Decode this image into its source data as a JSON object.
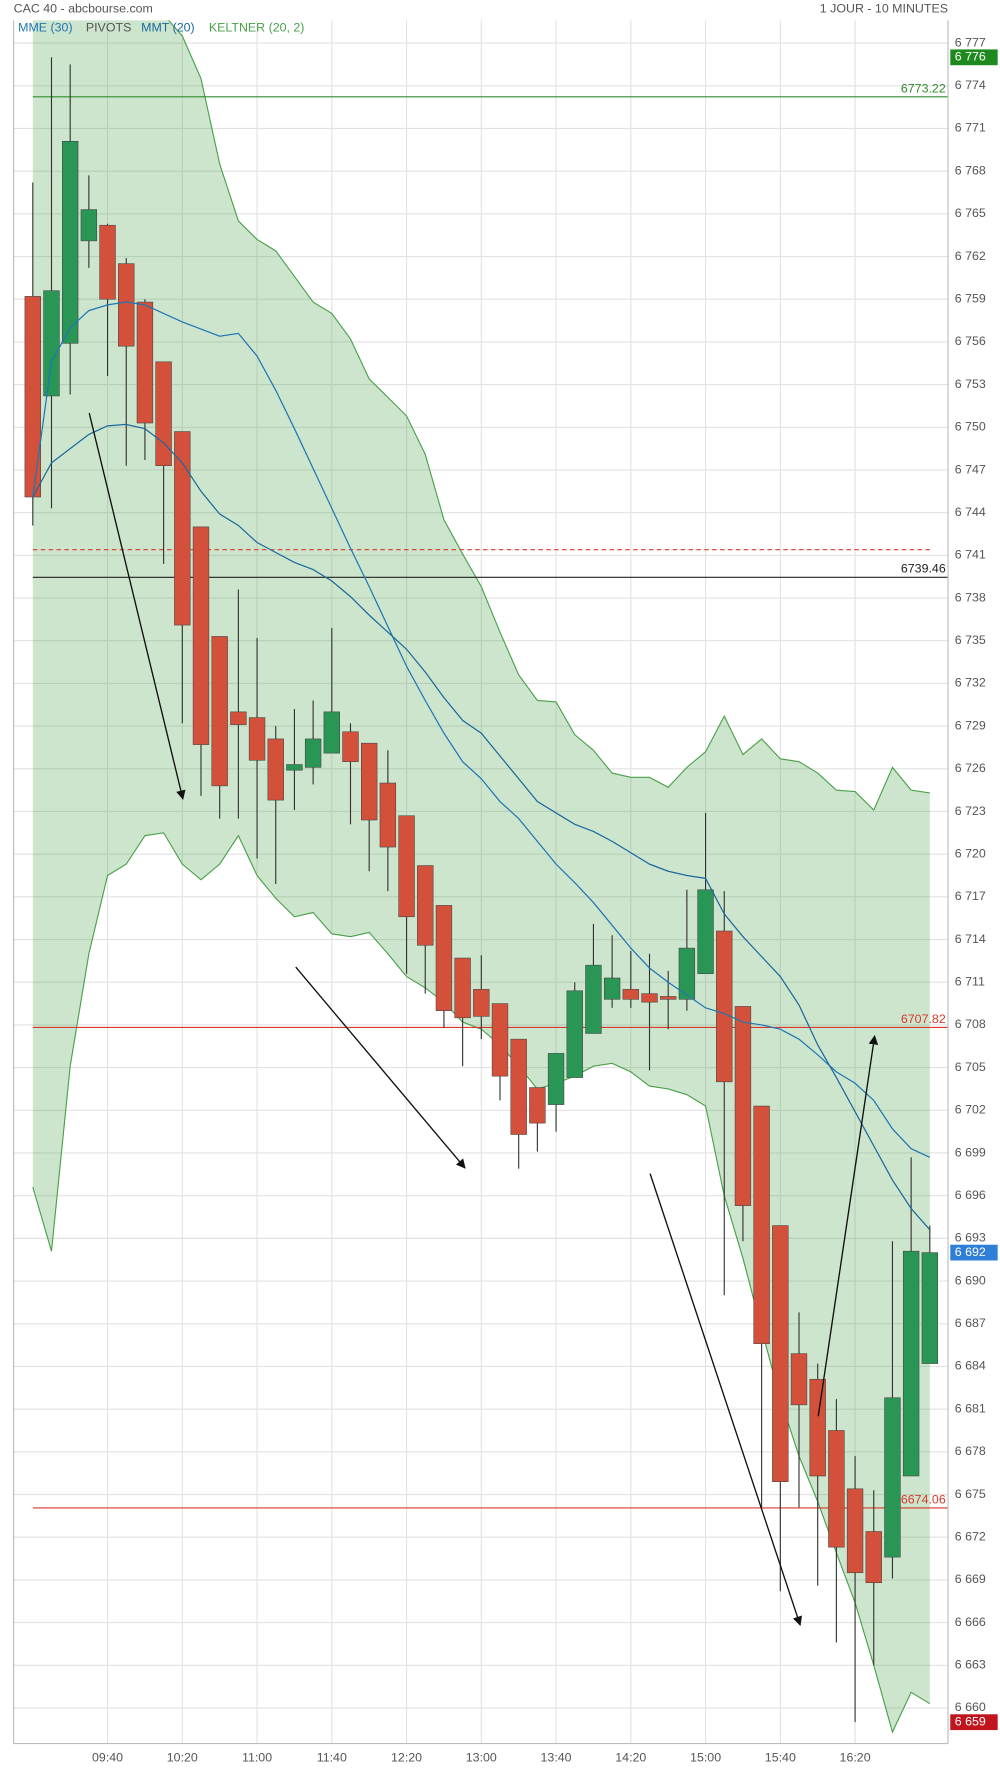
{
  "chart_data": {
    "type": "candlestick",
    "title": "CAC 40 - abcbourse.com",
    "subtitle": "1 JOUR - 10 MINUTES",
    "categories": [
      null,
      null,
      null,
      null,
      "09:40",
      null,
      null,
      null,
      "10:20",
      null,
      null,
      null,
      "11:00",
      null,
      null,
      null,
      "11:40",
      null,
      null,
      null,
      "12:20",
      null,
      null,
      null,
      "13:00",
      null,
      null,
      null,
      "13:40",
      null,
      null,
      null,
      "14:20",
      null,
      null,
      null,
      "15:00",
      null,
      null,
      null,
      "15:40",
      null,
      null,
      null,
      "16:20",
      null,
      null,
      null,
      null
    ],
    "open": [
      6759.2,
      6752.2,
      6755.9,
      6763.1,
      6764.2,
      6761.5,
      6758.8,
      6754.6,
      6749.7,
      6743.0,
      6735.3,
      6730.0,
      6729.6,
      6728.1,
      6725.9,
      6726.1,
      6727.1,
      6728.6,
      6727.8,
      6725.0,
      6722.7,
      6719.2,
      6716.4,
      6712.7,
      6710.5,
      6709.5,
      6707.0,
      6703.6,
      6702.4,
      6704.3,
      6707.4,
      6709.8,
      6710.5,
      6710.2,
      6710.0,
      6709.8,
      6711.6,
      6714.6,
      6709.3,
      6702.3,
      6693.9,
      6684.9,
      6683.1,
      6679.5,
      6675.4,
      6672.4,
      6670.6,
      6676.3,
      6684.2
    ],
    "high": [
      6767.2,
      6776,
      6775.5,
      6767.7,
      6764.3,
      6761.9,
      6759.0,
      6754.6,
      6749.7,
      6743.0,
      6735.3,
      6738.6,
      6735.2,
      6729.0,
      6730.2,
      6730.8,
      6735.9,
      6729.2,
      6727.8,
      6727.3,
      6722.7,
      6719.2,
      6716.4,
      6712.7,
      6712.9,
      6709.5,
      6707.0,
      6703.6,
      6706.0,
      6711.0,
      6715.1,
      6714.3,
      6713.2,
      6713.0,
      6711.8,
      6717.5,
      6722.9,
      6717.4,
      6709.3,
      6702.3,
      6693.9,
      6687.8,
      6684.2,
      6681.7,
      6677.7,
      6675.3,
      6692.8,
      6698.7,
      6693.9
    ],
    "low": [
      6743.1,
      6744.3,
      6752.3,
      6761.2,
      6753.6,
      6747.3,
      6747.7,
      6740.4,
      6729.2,
      6724.1,
      6722.5,
      6722.5,
      6719.7,
      6717.9,
      6723.1,
      6724.9,
      6727.1,
      6722.1,
      6718.8,
      6717.4,
      6711.6,
      6710.2,
      6707.8,
      6705.1,
      6707.0,
      6702.7,
      6697.9,
      6699.1,
      6700.5,
      6704.3,
      6707.4,
      6709.2,
      6709.2,
      6704.8,
      6707.7,
      6709.0,
      6711.6,
      6689.0,
      6692.8,
      6674.1,
      6668.2,
      6674.1,
      6668.6,
      6664.6,
      6659,
      6663.0,
      6669.1,
      6676.3,
      6684.2
    ],
    "close": [
      6745.1,
      6759.6,
      6770.1,
      6765.3,
      6759.0,
      6755.7,
      6750.3,
      6747.3,
      6736.1,
      6727.7,
      6724.8,
      6729.1,
      6726.6,
      6723.8,
      6726.3,
      6728.1,
      6730.0,
      6726.5,
      6722.4,
      6720.5,
      6715.6,
      6713.6,
      6709.0,
      6708.5,
      6708.6,
      6704.4,
      6700.3,
      6701.1,
      6706.0,
      6710.4,
      6712.2,
      6711.3,
      6709.8,
      6709.6,
      6709.8,
      6713.4,
      6717.5,
      6704.0,
      6695.3,
      6685.6,
      6675.9,
      6681.3,
      6676.3,
      6671.3,
      6669.5,
      6668.8,
      6681.8,
      6692.1,
      6692
    ],
    "up_color": "#2a9656",
    "down_color": "#d3513a",
    "series": [
      {
        "name": "MME (30)",
        "color": "#1f77b4",
        "values": [
          6745.1,
          6754.6,
          6757.0,
          6758.2,
          6758.6,
          6758.8,
          6758.6,
          6758.0,
          6757.4,
          6756.9,
          6756.4,
          6756.6,
          6755.0,
          6752.6,
          6749.9,
          6747.1,
          6744.3,
          6741.5,
          6738.8,
          6736.0,
          6733.2,
          6730.8,
          6728.5,
          6726.5,
          6725.3,
          6723.7,
          6722.5,
          6720.9,
          6719.3,
          6718.0,
          6716.6,
          6715.0,
          6713.4,
          6712.0,
          6711.0,
          6710.1,
          6709.2,
          6708.8,
          6708.2,
          6708.0,
          6707.7,
          6707.0,
          6705.9,
          6704.7,
          6703.9,
          6702.7,
          6700.7,
          6699.3,
          6698.7
        ]
      },
      {
        "name": "MMT (20)",
        "color": "#1b6a9c",
        "values": [
          6745.1,
          6747.5,
          6748.5,
          6749.5,
          6750.1,
          6750.2,
          6749.9,
          6748.9,
          6747.5,
          6745.5,
          6743.9,
          6743.1,
          6741.9,
          6741.2,
          6740.5,
          6740.0,
          6739.2,
          6738.1,
          6736.8,
          6735.6,
          6734.4,
          6732.8,
          6731.0,
          6729.4,
          6728.5,
          6726.9,
          6725.3,
          6723.7,
          6722.9,
          6722.1,
          6721.6,
          6720.9,
          6720.1,
          6719.3,
          6718.8,
          6718.5,
          6718.3,
          6715.8,
          6714.2,
          6712.8,
          6711.4,
          6709.4,
          6706.6,
          6704.3,
          6701.9,
          6699.5,
          6697.1,
          6695.1,
          6693.6
        ]
      }
    ],
    "band": {
      "name": "KELTNER (20, 2)",
      "color": "#4aa04a",
      "upper": [
        6779,
        6779,
        6779,
        6779,
        6779,
        6779,
        6779,
        6779,
        6777.5,
        6774.5,
        6768.5,
        6764.5,
        6763.2,
        6762.4,
        6760.6,
        6758.8,
        6758.0,
        6756.2,
        6753.4,
        6752.1,
        6750.8,
        6748.1,
        6743.5,
        6741.1,
        6738.8,
        6735.6,
        6732.6,
        6730.8,
        6730.7,
        6728.4,
        6727.3,
        6725.7,
        6725.4,
        6725.4,
        6724.7,
        6726.1,
        6727.2,
        6729.7,
        6727.0,
        6728.1,
        6726.7,
        6726.5,
        6725.7,
        6724.5,
        6724.4,
        6723.1,
        6726.1,
        6724.5,
        6724.3
      ],
      "lower": [
        6696.6,
        6692.1,
        6705.1,
        6713.0,
        6718.5,
        6719.3,
        6721.3,
        6721.5,
        6719.3,
        6718.2,
        6719.3,
        6721.3,
        6718.5,
        6716.9,
        6715.6,
        6715.9,
        6714.4,
        6714.2,
        6714.5,
        6713.0,
        6711.4,
        6710.6,
        6709.6,
        6708.2,
        6707.7,
        6706.6,
        6705.1,
        6703.5,
        6703.9,
        6704.4,
        6705.1,
        6705.3,
        6704.7,
        6703.7,
        6703.5,
        6703.1,
        6702.3,
        6696.0,
        6691.6,
        6686.6,
        6681.7,
        6677.7,
        6674.5,
        6670.9,
        6667.4,
        6663.0,
        6658.3,
        6661.1,
        6660.3
      ]
    },
    "pivots": {
      "name": "PIVOTS",
      "color": "#555555",
      "levels": [
        {
          "value": 6773.22,
          "color": "#2e8b2e"
        },
        {
          "value": 6739.46,
          "color": "#222222"
        },
        {
          "value": 6707.82,
          "color": "#d9392b"
        },
        {
          "value": 6674.06,
          "color": "#d9392b"
        }
      ]
    },
    "dashed_line": {
      "value": 6741.4,
      "color": "#d9392b"
    },
    "price_tags": [
      {
        "value": 6776,
        "label": "6 776",
        "color": "#1e8a1e"
      },
      {
        "value": 6692,
        "label": "6 692",
        "color": "#2f7fd8"
      },
      {
        "value": 6659,
        "label": "6 659",
        "color": "#c0141e"
      }
    ],
    "ylim": [
      6657.5,
      6778.6
    ],
    "yticks": [
      {
        "value": 6660,
        "label": "6 660"
      },
      {
        "value": 6663,
        "label": "6 663"
      },
      {
        "value": 6666,
        "label": "6 666"
      },
      {
        "value": 6669,
        "label": "6 669"
      },
      {
        "value": 6672,
        "label": "6 672"
      },
      {
        "value": 6675,
        "label": "6 675"
      },
      {
        "value": 6678,
        "label": "6 678"
      },
      {
        "value": 6681,
        "label": "6 681"
      },
      {
        "value": 6684,
        "label": "6 684"
      },
      {
        "value": 6687,
        "label": "6 687"
      },
      {
        "value": 6690,
        "label": "6 690"
      },
      {
        "value": 6693,
        "label": "6 693"
      },
      {
        "value": 6696,
        "label": "6 696"
      },
      {
        "value": 6699,
        "label": "6 699"
      },
      {
        "value": 6702,
        "label": "6 702"
      },
      {
        "value": 6705,
        "label": "6 705"
      },
      {
        "value": 6708,
        "label": "6 708"
      },
      {
        "value": 6711,
        "label": "6 711"
      },
      {
        "value": 6714,
        "label": "6 714"
      },
      {
        "value": 6717,
        "label": "6 717"
      },
      {
        "value": 6720,
        "label": "6 720"
      },
      {
        "value": 6723,
        "label": "6 723"
      },
      {
        "value": 6726,
        "label": "6 726"
      },
      {
        "value": 6729,
        "label": "6 729"
      },
      {
        "value": 6732,
        "label": "6 732"
      },
      {
        "value": 6735,
        "label": "6 735"
      },
      {
        "value": 6738,
        "label": "6 738"
      },
      {
        "value": 6741,
        "label": "6 741"
      },
      {
        "value": 6744,
        "label": "6 744"
      },
      {
        "value": 6747,
        "label": "6 747"
      },
      {
        "value": 6750,
        "label": "6 750"
      },
      {
        "value": 6753,
        "label": "6 753"
      },
      {
        "value": 6756,
        "label": "6 756"
      },
      {
        "value": 6759,
        "label": "6 759"
      },
      {
        "value": 6762,
        "label": "6 762"
      },
      {
        "value": 6765,
        "label": "6 765"
      },
      {
        "value": 6768,
        "label": "6 768"
      },
      {
        "value": 6771,
        "label": "6 771"
      },
      {
        "value": 6774,
        "label": "6 774"
      },
      {
        "value": 6777,
        "label": "6 777"
      }
    ],
    "grid": true
  }
}
